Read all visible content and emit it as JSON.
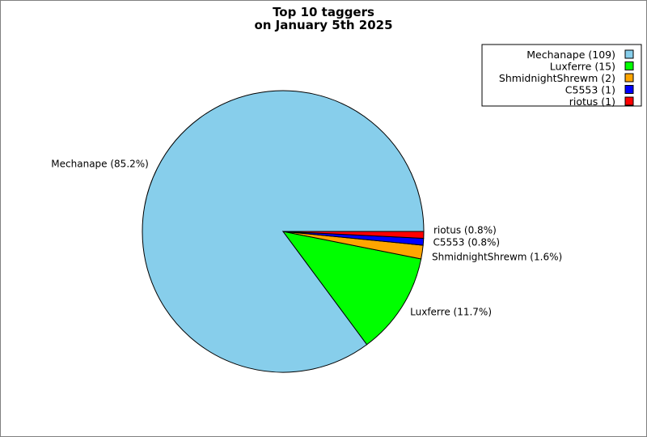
{
  "chart_data": {
    "type": "pie",
    "title": [
      "Top 10 taggers",
      "on January 5th 2025"
    ],
    "slices": [
      {
        "name": "Mechanape",
        "value": 109,
        "color": "#87ceeb",
        "legend": "Mechanape (109)",
        "label": "Mechanape (85.2%)"
      },
      {
        "name": "Luxferre",
        "value": 15,
        "color": "#00ff00",
        "legend": "Luxferre (15)",
        "label": "Luxferre (11.7%)"
      },
      {
        "name": "ShmidnightShrewm",
        "value": 2,
        "color": "#ffa500",
        "legend": "ShmidnightShrewm (2)",
        "label": "ShmidnightShrewm (1.6%)"
      },
      {
        "name": "C5553",
        "value": 1,
        "color": "#0000ff",
        "legend": "C5553 (1)",
        "label": "C5553 (0.8%)"
      },
      {
        "name": "riotus",
        "value": 1,
        "color": "#ff0000",
        "legend": "riotus (1)",
        "label": "riotus (0.8%)"
      }
    ],
    "legend_position": "top-right",
    "start_angle": "3 o'clock",
    "direction": "counter-clockwise"
  }
}
